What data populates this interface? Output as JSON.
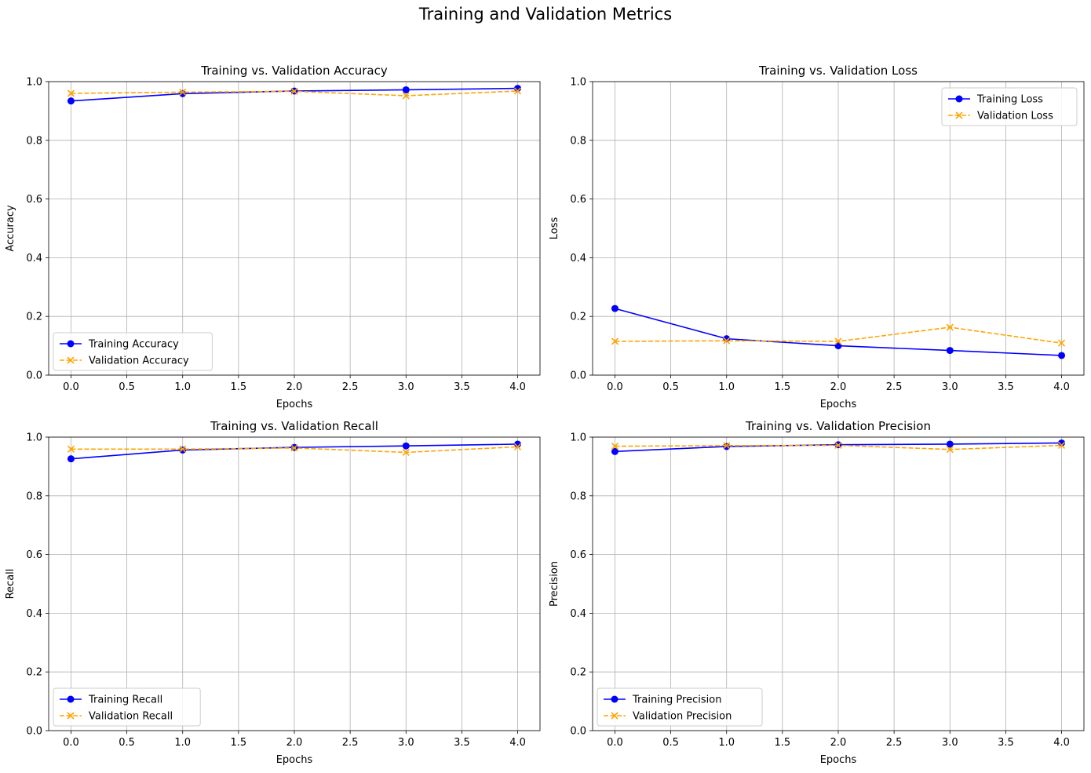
{
  "suptitle": "Training and Validation Metrics",
  "colors": {
    "training": "#0000ff",
    "validation": "#ffa500",
    "grid": "#b0b0b0"
  },
  "chart_data": [
    {
      "type": "line",
      "title": "Training vs. Validation Accuracy",
      "xlabel": "Epochs",
      "ylabel": "Accuracy",
      "x": [
        0,
        1,
        2,
        3,
        4
      ],
      "xlim": [
        -0.2,
        4.2
      ],
      "ylim": [
        0,
        1
      ],
      "xticks": [
        "0.0",
        "0.5",
        "1.0",
        "1.5",
        "2.0",
        "2.5",
        "3.0",
        "3.5",
        "4.0"
      ],
      "yticks": [
        "0.0",
        "0.2",
        "0.4",
        "0.6",
        "0.8",
        "1.0"
      ],
      "grid": true,
      "legend": "lower left",
      "series": [
        {
          "name": "Training Accuracy",
          "values": [
            0.934,
            0.959,
            0.968,
            0.972,
            0.977
          ],
          "style": "solid",
          "marker": "circle",
          "color": "#0000ff"
        },
        {
          "name": "Validation Accuracy",
          "values": [
            0.96,
            0.964,
            0.967,
            0.952,
            0.968
          ],
          "style": "dashed",
          "marker": "x",
          "color": "#ffa500"
        }
      ]
    },
    {
      "type": "line",
      "title": "Training vs. Validation Loss",
      "xlabel": "Epochs",
      "ylabel": "Loss",
      "x": [
        0,
        1,
        2,
        3,
        4
      ],
      "xlim": [
        -0.2,
        4.2
      ],
      "ylim": [
        0,
        1
      ],
      "xticks": [
        "0.0",
        "0.5",
        "1.0",
        "1.5",
        "2.0",
        "2.5",
        "3.0",
        "3.5",
        "4.0"
      ],
      "yticks": [
        "0.0",
        "0.2",
        "0.4",
        "0.6",
        "0.8",
        "1.0"
      ],
      "grid": true,
      "legend": "upper right",
      "series": [
        {
          "name": "Training Loss",
          "values": [
            0.227,
            0.124,
            0.1,
            0.084,
            0.067
          ],
          "style": "solid",
          "marker": "circle",
          "color": "#0000ff"
        },
        {
          "name": "Validation Loss",
          "values": [
            0.115,
            0.117,
            0.115,
            0.163,
            0.109
          ],
          "style": "dashed",
          "marker": "x",
          "color": "#ffa500"
        }
      ]
    },
    {
      "type": "line",
      "title": "Training vs. Validation Recall",
      "xlabel": "Epochs",
      "ylabel": "Recall",
      "x": [
        0,
        1,
        2,
        3,
        4
      ],
      "xlim": [
        -0.2,
        4.2
      ],
      "ylim": [
        0,
        1
      ],
      "xticks": [
        "0.0",
        "0.5",
        "1.0",
        "1.5",
        "2.0",
        "2.5",
        "3.0",
        "3.5",
        "4.0"
      ],
      "yticks": [
        "0.0",
        "0.2",
        "0.4",
        "0.6",
        "0.8",
        "1.0"
      ],
      "grid": true,
      "legend": "lower left",
      "series": [
        {
          "name": "Training Recall",
          "values": [
            0.926,
            0.956,
            0.965,
            0.97,
            0.976
          ],
          "style": "solid",
          "marker": "circle",
          "color": "#0000ff"
        },
        {
          "name": "Validation Recall",
          "values": [
            0.959,
            0.959,
            0.963,
            0.948,
            0.967
          ],
          "style": "dashed",
          "marker": "x",
          "color": "#ffa500"
        }
      ]
    },
    {
      "type": "line",
      "title": "Training vs. Validation Precision",
      "xlabel": "Epochs",
      "ylabel": "Precision",
      "x": [
        0,
        1,
        2,
        3,
        4
      ],
      "xlim": [
        -0.2,
        4.2
      ],
      "ylim": [
        0,
        1
      ],
      "xticks": [
        "0.0",
        "0.5",
        "1.0",
        "1.5",
        "2.0",
        "2.5",
        "3.0",
        "3.5",
        "4.0"
      ],
      "yticks": [
        "0.0",
        "0.2",
        "0.4",
        "0.6",
        "0.8",
        "1.0"
      ],
      "grid": true,
      "legend": "lower left",
      "series": [
        {
          "name": "Training Precision",
          "values": [
            0.951,
            0.968,
            0.974,
            0.976,
            0.98
          ],
          "style": "solid",
          "marker": "circle",
          "color": "#0000ff"
        },
        {
          "name": "Validation Precision",
          "values": [
            0.969,
            0.971,
            0.972,
            0.958,
            0.972
          ],
          "style": "dashed",
          "marker": "x",
          "color": "#ffa500"
        }
      ]
    }
  ]
}
